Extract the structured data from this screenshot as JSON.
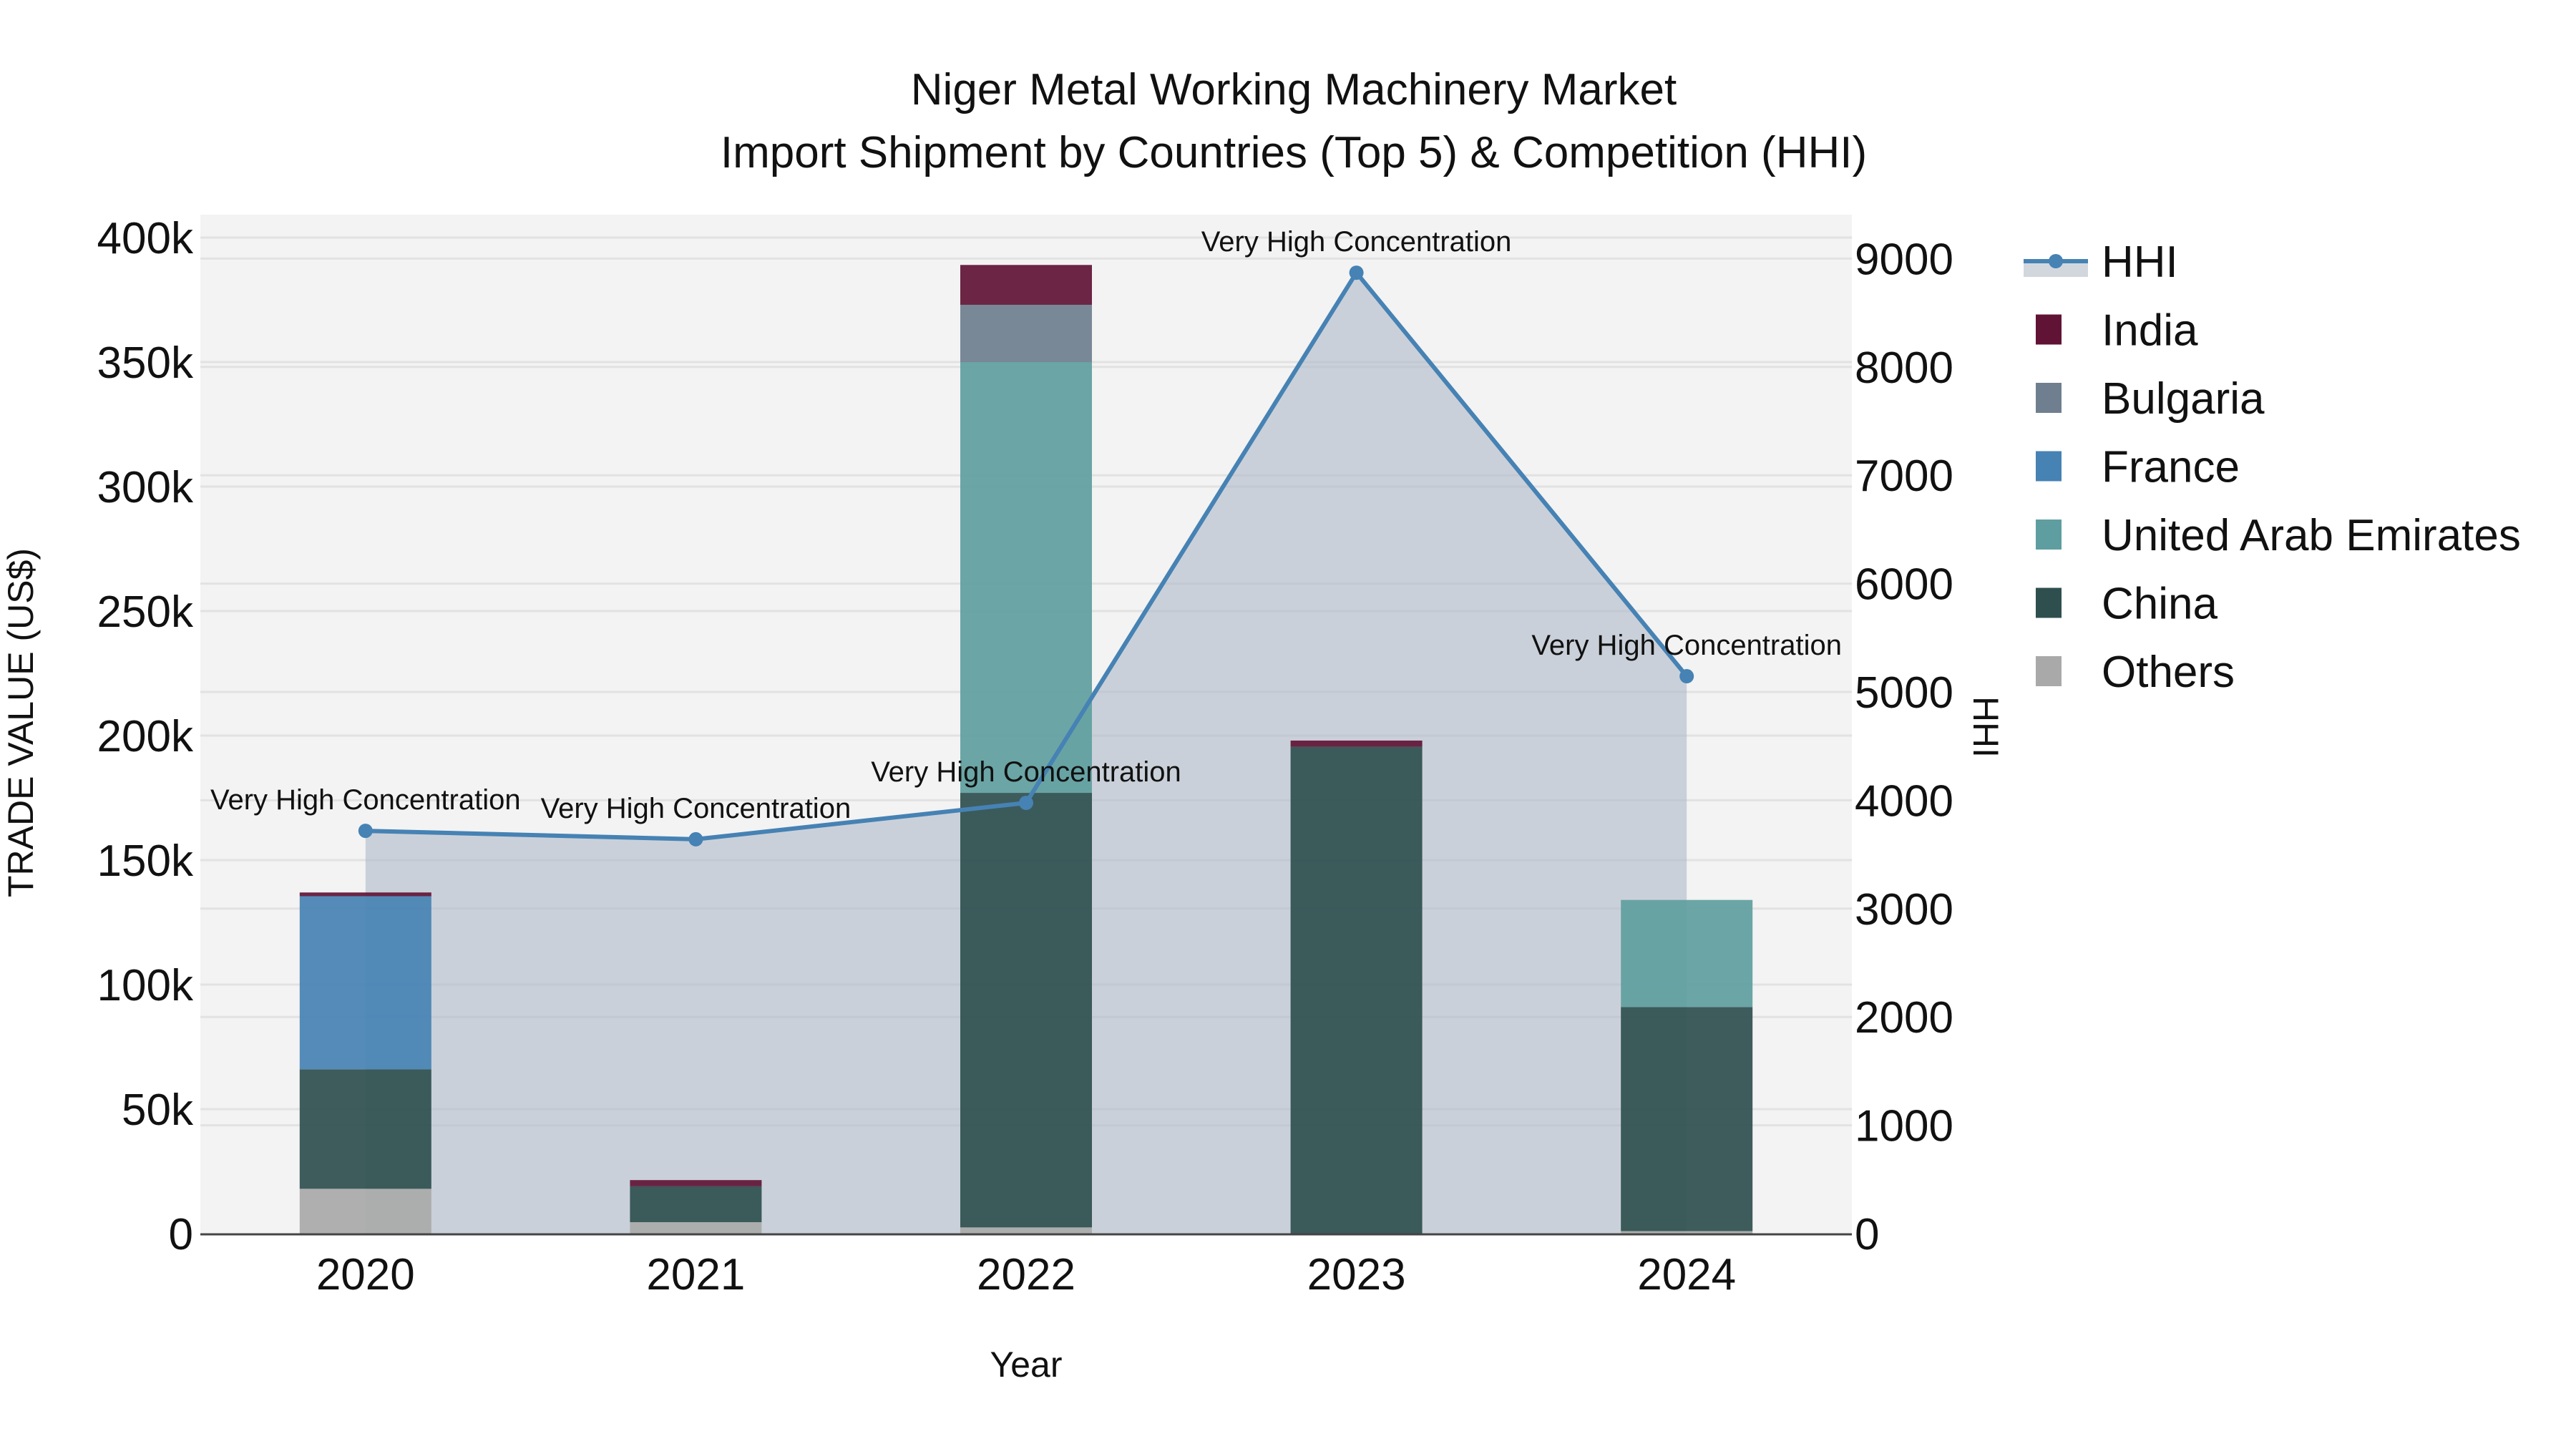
{
  "title": {
    "line1": "Niger Metal Working Machinery Market",
    "line2": "Import Shipment by Countries (Top 5) & Competition (HHI)"
  },
  "axes": {
    "x_title": "Year",
    "y_left_title": "TRADE VALUE (US$)",
    "y_right_title": "HHI",
    "y_left_ticks": [
      "0",
      "50k",
      "100k",
      "150k",
      "200k",
      "250k",
      "300k",
      "350k",
      "400k"
    ],
    "y_right_ticks": [
      "0",
      "1000",
      "2000",
      "3000",
      "4000",
      "5000",
      "6000",
      "7000",
      "8000",
      "9000"
    ]
  },
  "legend": [
    {
      "name": "HHI",
      "type": "line",
      "color": "#4682b4"
    },
    {
      "name": "India",
      "type": "bar",
      "color": "#611335"
    },
    {
      "name": "Bulgaria",
      "type": "bar",
      "color": "#6f7f8f"
    },
    {
      "name": "France",
      "type": "bar",
      "color": "#4682b4"
    },
    {
      "name": "United Arab Emirates",
      "type": "bar",
      "color": "#5f9ea0"
    },
    {
      "name": "China",
      "type": "bar",
      "color": "#2f4f4f"
    },
    {
      "name": "Others",
      "type": "bar",
      "color": "#a9a9a9"
    }
  ],
  "annotations": [
    {
      "year": "2020",
      "text": "Very High Concentration"
    },
    {
      "year": "2021",
      "text": "Very High Concentration"
    },
    {
      "year": "2022",
      "text": "Very High Concentration"
    },
    {
      "year": "2023",
      "text": "Very High Concentration"
    },
    {
      "year": "2024",
      "text": "Very High Concentration"
    }
  ],
  "chart_data": {
    "type": "bar",
    "subtype": "stacked bar with HHI line/area on secondary axis",
    "title": "Niger Metal Working Machinery Market — Import Shipment by Countries (Top 5) & Competition (HHI)",
    "xlabel": "Year",
    "ylabel": "TRADE VALUE (US$)",
    "y2label": "HHI",
    "categories": [
      "2020",
      "2021",
      "2022",
      "2023",
      "2024"
    ],
    "ylim": [
      0,
      410000
    ],
    "y2lim": [
      0,
      9400
    ],
    "grid": true,
    "legend_position": "right",
    "series": [
      {
        "name": "Others",
        "color": "#a9a9a9",
        "values": [
          18000,
          4600,
          2500,
          0,
          1000
        ]
      },
      {
        "name": "China",
        "color": "#2f4f4f",
        "values": [
          48000,
          14400,
          174500,
          195500,
          90000
        ]
      },
      {
        "name": "United Arab Emirates",
        "color": "#5f9ea0",
        "values": [
          0,
          0,
          173000,
          0,
          43000
        ]
      },
      {
        "name": "France",
        "color": "#4682b4",
        "values": [
          69500,
          0,
          0,
          0,
          0
        ]
      },
      {
        "name": "Bulgaria",
        "color": "#6f7f8f",
        "values": [
          0,
          0,
          23000,
          0,
          0
        ]
      },
      {
        "name": "India",
        "color": "#611335",
        "values": [
          1500,
          2500,
          16000,
          2500,
          0
        ]
      }
    ],
    "hhi": {
      "name": "HHI",
      "axis": "right",
      "color": "#4682b4",
      "values": [
        3718,
        3640,
        3976,
        8870,
        5145
      ],
      "labels": [
        "Very High Concentration",
        "Very High Concentration",
        "Very High Concentration",
        "Very High Concentration",
        "Very High Concentration"
      ]
    }
  }
}
